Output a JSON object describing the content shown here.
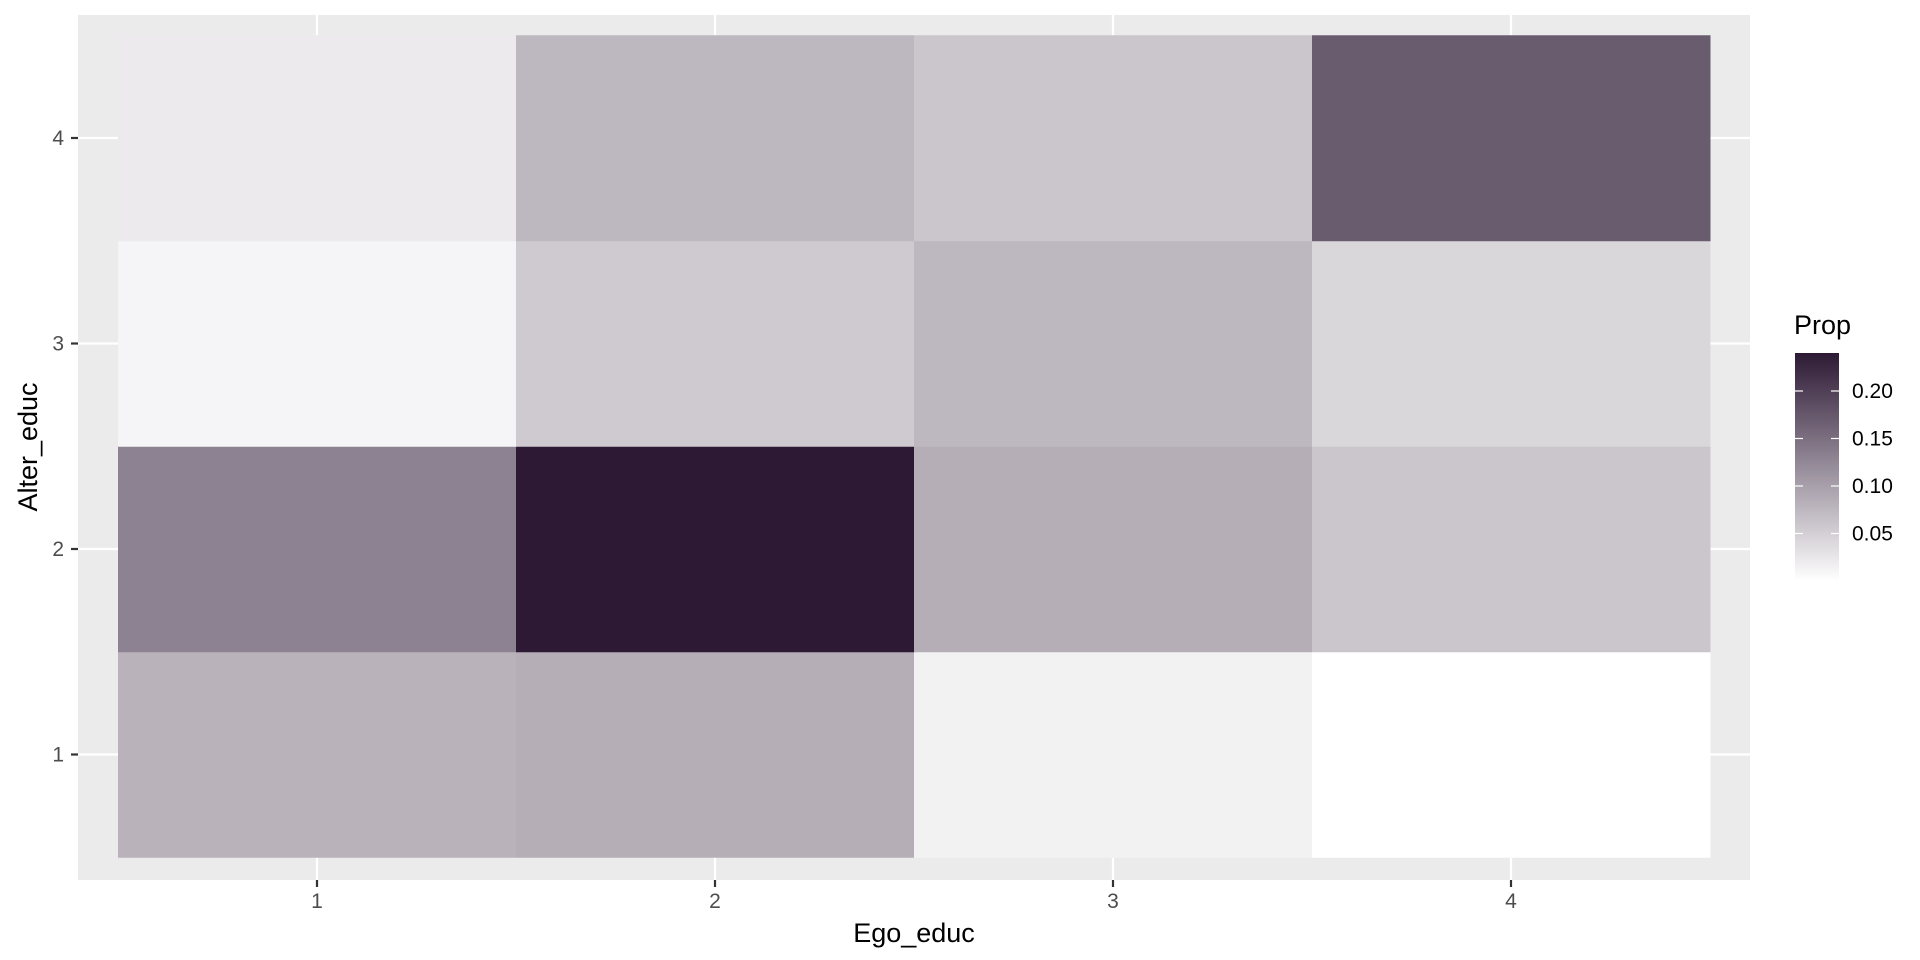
{
  "chart_data": {
    "type": "heatmap",
    "xlabel": "Ego_educ",
    "ylabel": "Alter_educ",
    "x_categories": [
      "1",
      "2",
      "3",
      "4"
    ],
    "y_categories": [
      "1",
      "2",
      "3",
      "4"
    ],
    "cells": [
      {
        "x": "1",
        "y": "1",
        "value": 0.08
      },
      {
        "x": "2",
        "y": "1",
        "value": 0.085
      },
      {
        "x": "3",
        "y": "1",
        "value": 0.014
      },
      {
        "x": "4",
        "y": "1",
        "value": 0.0
      },
      {
        "x": "1",
        "y": "2",
        "value": 0.13
      },
      {
        "x": "2",
        "y": "2",
        "value": 0.24
      },
      {
        "x": "3",
        "y": "2",
        "value": 0.085
      },
      {
        "x": "4",
        "y": "2",
        "value": 0.06
      },
      {
        "x": "1",
        "y": "3",
        "value": 0.011
      },
      {
        "x": "2",
        "y": "3",
        "value": 0.055
      },
      {
        "x": "3",
        "y": "3",
        "value": 0.075
      },
      {
        "x": "4",
        "y": "3",
        "value": 0.042
      },
      {
        "x": "1",
        "y": "4",
        "value": 0.022
      },
      {
        "x": "2",
        "y": "4",
        "value": 0.075
      },
      {
        "x": "3",
        "y": "4",
        "value": 0.06
      },
      {
        "x": "4",
        "y": "4",
        "value": 0.17
      }
    ],
    "legend": {
      "title": "Prop",
      "breaks": [
        0.05,
        0.1,
        0.15,
        0.2
      ],
      "break_labels": [
        "0.05",
        "0.10",
        "0.15",
        "0.20"
      ],
      "limits": [
        0.0,
        0.24
      ],
      "low_color": "#ffffff",
      "high_color": "#2d1934",
      "position": "right"
    },
    "panel_background": "#ebebeb",
    "grid": true
  }
}
